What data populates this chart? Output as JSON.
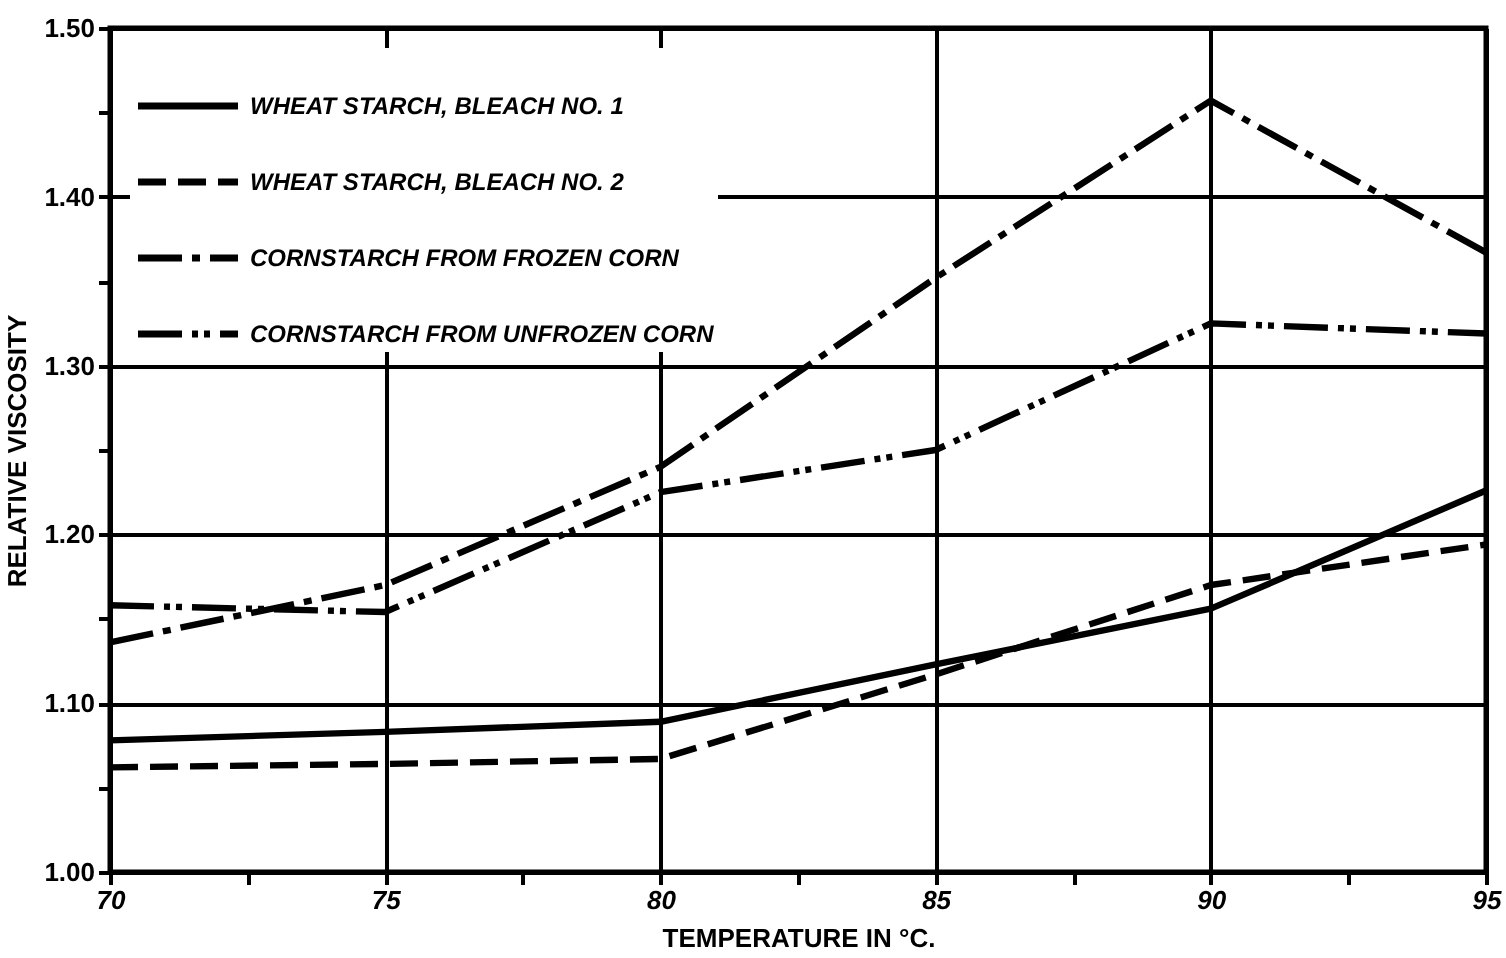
{
  "chart_data": {
    "type": "line",
    "xlabel": "TEMPERATURE IN °C.",
    "ylabel": "RELATIVE VISCOSITY",
    "x": [
      70,
      75,
      80,
      85,
      90,
      95
    ],
    "xlim": [
      70,
      95
    ],
    "xticks": [
      70,
      {
        "value": 72.5,
        "label": null
      },
      75,
      {
        "value": 77.5,
        "label": null
      },
      80,
      {
        "value": 82.5,
        "label": null
      },
      85,
      {
        "value": 87.5,
        "label": null
      },
      90,
      {
        "value": 92.5,
        "label": null
      },
      95
    ],
    "ylim": [
      1.0,
      1.5
    ],
    "yticks": [
      {
        "value": 1.0,
        "label": "1.00"
      },
      {
        "value": 1.05,
        "label": null
      },
      {
        "value": 1.1,
        "label": "1.10"
      },
      {
        "value": 1.15,
        "label": null
      },
      {
        "value": 1.2,
        "label": "1.20"
      },
      {
        "value": 1.25,
        "label": null
      },
      {
        "value": 1.3,
        "label": "1.30"
      },
      {
        "value": 1.35,
        "label": null
      },
      {
        "value": 1.4,
        "label": "1.40"
      },
      {
        "value": 1.45,
        "label": null
      },
      {
        "value": 1.5,
        "label": "1.50"
      }
    ],
    "grid": true,
    "legend": "top left",
    "marker": "none",
    "series": [
      {
        "name": "WHEAT STARCH, BLEACH NO. 1",
        "color": "#000000",
        "line_style": "solid",
        "values": [
          1.078,
          1.083,
          1.089,
          1.123,
          1.156,
          1.226
        ]
      },
      {
        "name": "WHEAT STARCH, BLEACH NO. 2",
        "color": "#000000",
        "line_style": "dashed",
        "values": [
          1.062,
          1.064,
          1.067,
          1.117,
          1.17,
          1.194
        ]
      },
      {
        "name": "CORNSTARCH FROM FROZEN CORN",
        "color": "#000000",
        "line_style": "dashdot",
        "values": [
          1.136,
          1.17,
          1.24,
          1.352,
          1.457,
          1.367
        ]
      },
      {
        "name": "CORNSTARCH FROM UNFROZEN CORN",
        "color": "#000000",
        "line_style": "dashdotdot",
        "values": [
          1.158,
          1.154,
          1.225,
          1.25,
          1.325,
          1.319
        ]
      }
    ]
  }
}
